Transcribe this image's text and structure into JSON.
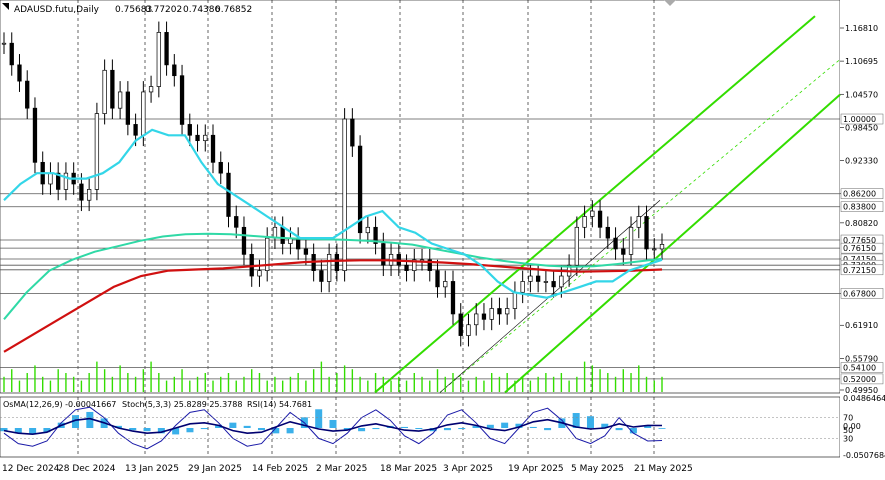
{
  "header": {
    "symbol": "ADAUSD.futu,Daily",
    "open": "0.75683",
    "high": "0.77202",
    "low": "0.74386",
    "close": "0.76852"
  },
  "indicator_header": {
    "osma": "OsMA(12,26,9) -0.00041667",
    "stoch": "Stoch(5,3,3) 25.8289 25.3788",
    "rsi": "RSI(14) 54.7681"
  },
  "colors": {
    "candle": "#000000",
    "ema_fast": "#33d6e8",
    "ema_mid": "#2fd9a6",
    "ema_slow": "#d01010",
    "channel": "#33dd00",
    "level_line": "#555555",
    "osma_bar": "#3ab0ea",
    "label_bg": "#ffffff"
  },
  "chart_data": {
    "type": "line",
    "title": "ADAUSD.futu,Daily",
    "price_axis_ticks": [
      "1.16810",
      "1.10695",
      "1.04570",
      "0.98450",
      "0.92330",
      "0.86200",
      "0.80820",
      "0.74150",
      "0.67800",
      "0.61910",
      "0.55790",
      "0.49950"
    ],
    "price_levels": [
      {
        "label": "1.00000",
        "value": 1.0
      },
      {
        "label": "0.86200",
        "value": 0.862
      },
      {
        "label": "0.83800",
        "value": 0.838
      },
      {
        "label": "0.77650",
        "value": 0.7765
      },
      {
        "label": "0.76150",
        "value": 0.7615
      },
      {
        "label": "0.74150",
        "value": 0.7415
      },
      {
        "label": "0.73000",
        "value": 0.73
      },
      {
        "label": "0.72150",
        "value": 0.7215
      },
      {
        "label": "0.67800",
        "value": 0.678
      },
      {
        "label": "0.54100",
        "value": 0.541
      },
      {
        "label": "0.52000",
        "value": 0.52
      }
    ],
    "x_ticks": [
      "12 Dec 2024",
      "28 Dec 2024",
      "13 Jan 2025",
      "29 Jan 2025",
      "14 Feb 2025",
      "2 Mar 2025",
      "18 Mar 2025",
      "3 Apr 2025",
      "19 Apr 2025",
      "5 May 2025",
      "21 May 2025"
    ],
    "close_series": [
      1.14,
      1.1,
      1.07,
      1.02,
      0.92,
      0.88,
      0.9,
      0.87,
      0.9,
      0.88,
      0.85,
      0.87,
      1.01,
      1.09,
      1.02,
      1.05,
      0.99,
      0.97,
      1.05,
      1.06,
      1.16,
      1.1,
      1.08,
      0.99,
      0.97,
      0.96,
      0.97,
      0.92,
      0.9,
      0.82,
      0.8,
      0.75,
      0.71,
      0.72,
      0.78,
      0.8,
      0.77,
      0.78,
      0.76,
      0.75,
      0.72,
      0.7,
      0.75,
      0.72,
      1.0,
      0.95,
      0.79,
      0.8,
      0.77,
      0.73,
      0.75,
      0.73,
      0.72,
      0.74,
      0.74,
      0.72,
      0.69,
      0.7,
      0.64,
      0.6,
      0.62,
      0.64,
      0.63,
      0.65,
      0.64,
      0.65,
      0.68,
      0.7,
      0.71,
      0.7,
      0.7,
      0.69,
      0.71,
      0.73,
      0.8,
      0.82,
      0.83,
      0.8,
      0.78,
      0.76,
      0.75,
      0.8,
      0.82,
      0.76,
      0.76,
      0.7685
    ],
    "ema_fast_series": [
      0.85,
      0.88,
      0.9,
      0.9,
      0.89,
      0.89,
      0.9,
      0.92,
      0.96,
      0.98,
      0.97,
      0.97,
      0.92,
      0.88,
      0.86,
      0.84,
      0.82,
      0.8,
      0.78,
      0.78,
      0.78,
      0.8,
      0.82,
      0.83,
      0.8,
      0.79,
      0.77,
      0.76,
      0.75,
      0.73,
      0.7,
      0.68,
      0.675,
      0.67,
      0.68,
      0.69,
      0.7,
      0.7,
      0.72,
      0.73,
      0.74
    ],
    "ema_mid_series": [
      0.63,
      0.68,
      0.72,
      0.74,
      0.755,
      0.765,
      0.775,
      0.783,
      0.787,
      0.788,
      0.787,
      0.784,
      0.781,
      0.779,
      0.778,
      0.777,
      0.775,
      0.772,
      0.768,
      0.76,
      0.752,
      0.744,
      0.738,
      0.733,
      0.729,
      0.727,
      0.728,
      0.732,
      0.737,
      0.742
    ],
    "ema_slow_series": [
      0.57,
      0.6,
      0.63,
      0.66,
      0.69,
      0.71,
      0.72,
      0.722,
      0.724,
      0.728,
      0.732,
      0.736,
      0.738,
      0.739,
      0.739,
      0.737,
      0.735,
      0.732,
      0.728,
      0.724,
      0.72,
      0.718,
      0.719,
      0.72,
      0.722
    ],
    "volume": [
      4,
      6,
      3,
      5,
      7,
      4,
      3,
      6,
      5,
      4,
      3,
      5,
      8,
      6,
      4,
      7,
      5,
      4,
      6,
      8,
      5,
      3,
      4,
      6,
      3,
      4,
      5,
      3,
      4,
      5,
      3,
      4,
      6,
      5,
      3,
      4,
      3,
      4,
      5,
      3,
      6,
      8,
      4,
      5,
      7,
      6,
      4,
      3,
      5,
      4,
      3,
      4,
      3,
      5,
      4,
      3,
      6,
      4,
      5,
      4,
      3,
      4,
      3,
      5,
      4,
      5,
      3,
      4,
      3,
      4,
      5,
      4,
      5,
      3,
      4,
      8,
      7,
      6,
      5,
      4,
      6,
      5,
      7,
      4,
      3,
      4
    ],
    "indicator_ticks": [
      "0.0486464",
      "70",
      "0.00",
      "50",
      "30",
      "-0.0507684"
    ],
    "osma_values": [
      -0.006,
      -0.01,
      -0.012,
      -0.008,
      0.01,
      0.024,
      0.03,
      0.018,
      0.004,
      -0.004,
      -0.006,
      -0.01,
      -0.012,
      -0.008,
      -0.002,
      0.006,
      0.01,
      0.004,
      -0.004,
      -0.01,
      -0.01,
      0.02,
      0.035,
      0.015,
      -0.004,
      -0.006,
      -0.002,
      0.004,
      0.002,
      -0.002,
      -0.006,
      -0.004,
      -0.002,
      0.004,
      0.006,
      0.01,
      0.008,
      0.002,
      -0.004,
      0.018,
      0.028,
      0.022,
      0.008,
      -0.004,
      -0.01,
      0.004,
      -0.0004
    ],
    "stoch_values": [
      40,
      20,
      15,
      25,
      60,
      85,
      90,
      70,
      40,
      20,
      10,
      25,
      55,
      80,
      85,
      60,
      30,
      15,
      20,
      50,
      80,
      60,
      30,
      20,
      40,
      70,
      85,
      65,
      35,
      20,
      40,
      75,
      85,
      60,
      30,
      20,
      50,
      80,
      88,
      65,
      30,
      20,
      35,
      70,
      40,
      25,
      26
    ],
    "rsi_values": [
      45,
      40,
      38,
      42,
      55,
      65,
      68,
      60,
      50,
      44,
      40,
      42,
      50,
      58,
      60,
      55,
      45,
      40,
      42,
      52,
      62,
      55,
      48,
      44,
      46,
      54,
      58,
      52,
      46,
      44,
      48,
      56,
      60,
      55,
      48,
      45,
      52,
      62,
      66,
      60,
      52,
      48,
      50,
      58,
      52,
      55,
      54.8
    ]
  }
}
